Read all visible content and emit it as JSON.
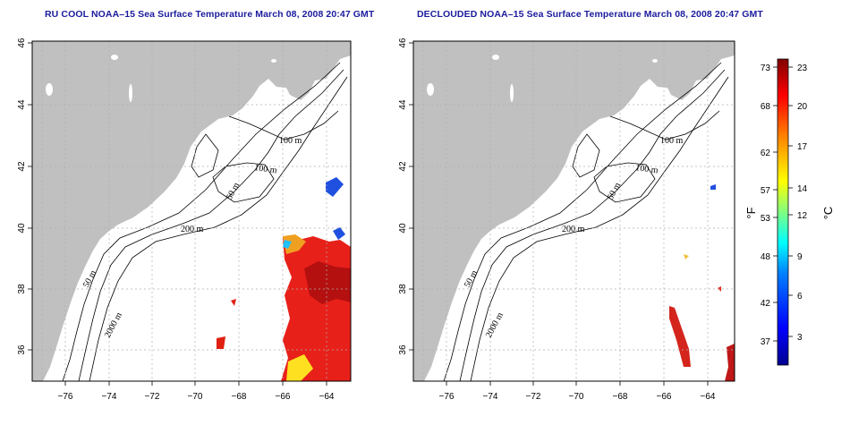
{
  "panels": [
    {
      "title": "RU COOL NOAA–15 Sea Surface Temperature March 08, 2008 20:47 GMT"
    },
    {
      "title": "DECLOUDED NOAA–15 Sea Surface Temperature March 08, 2008 20:47 GMT"
    }
  ],
  "map": {
    "lon_ticks": [
      "−76",
      "−74",
      "−72",
      "−70",
      "−68",
      "−66",
      "−64"
    ],
    "lat_ticks": [
      "36",
      "38",
      "40",
      "42",
      "44",
      "46"
    ],
    "contour_labels": [
      "100 m",
      "100 m",
      "50 m",
      "200 m",
      "50 m",
      "2000 m"
    ],
    "land_color": "#c0c0c0",
    "grid": "dotted"
  },
  "colorbar": {
    "fahrenheit_ticks": [
      "73",
      "68",
      "62",
      "57",
      "53",
      "48",
      "42",
      "37"
    ],
    "celsius_ticks": [
      "23",
      "20",
      "17",
      "14",
      "12",
      "9",
      "6",
      "3"
    ],
    "fahrenheit_unit": "°F",
    "celsius_unit": "°C",
    "colors": [
      "#00008f",
      "#0000ff",
      "#0080ff",
      "#00ffff",
      "#80ff80",
      "#ffff00",
      "#ff8000",
      "#ff0000",
      "#800000"
    ]
  }
}
